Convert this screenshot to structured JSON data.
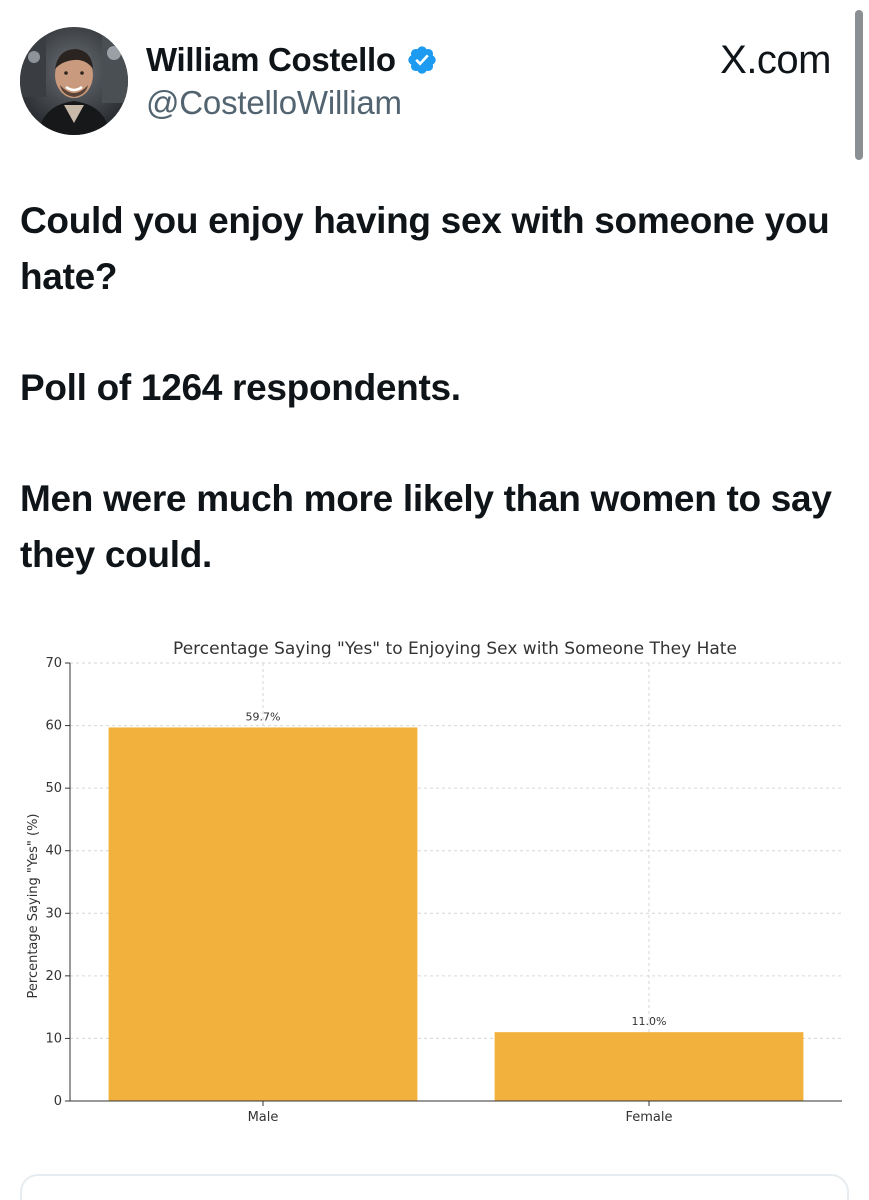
{
  "author": {
    "name": "William Costello",
    "handle": "@CostelloWilliam",
    "verified": true
  },
  "source_label": "X.com",
  "post": {
    "question": "Could you enjoy having sex with someone you hate?",
    "poll_info": "Poll of 1264 respondents.",
    "finding": "Men were much more likely than women to say they could."
  },
  "colors": {
    "bar": "#f2b13c",
    "verified": "#1d9bf0"
  },
  "chart_data": {
    "type": "bar",
    "title": "Percentage Saying \"Yes\" to Enjoying Sex with Someone They Hate",
    "xlabel": "",
    "ylabel": "Percentage Saying \"Yes\" (%)",
    "categories": [
      "Male",
      "Female"
    ],
    "values": [
      59.7,
      11.0
    ],
    "value_labels": [
      "59.7%",
      "11.0%"
    ],
    "ylim": [
      0,
      70
    ],
    "yticks": [
      0,
      10,
      20,
      30,
      40,
      50,
      60,
      70
    ],
    "grid": true
  }
}
